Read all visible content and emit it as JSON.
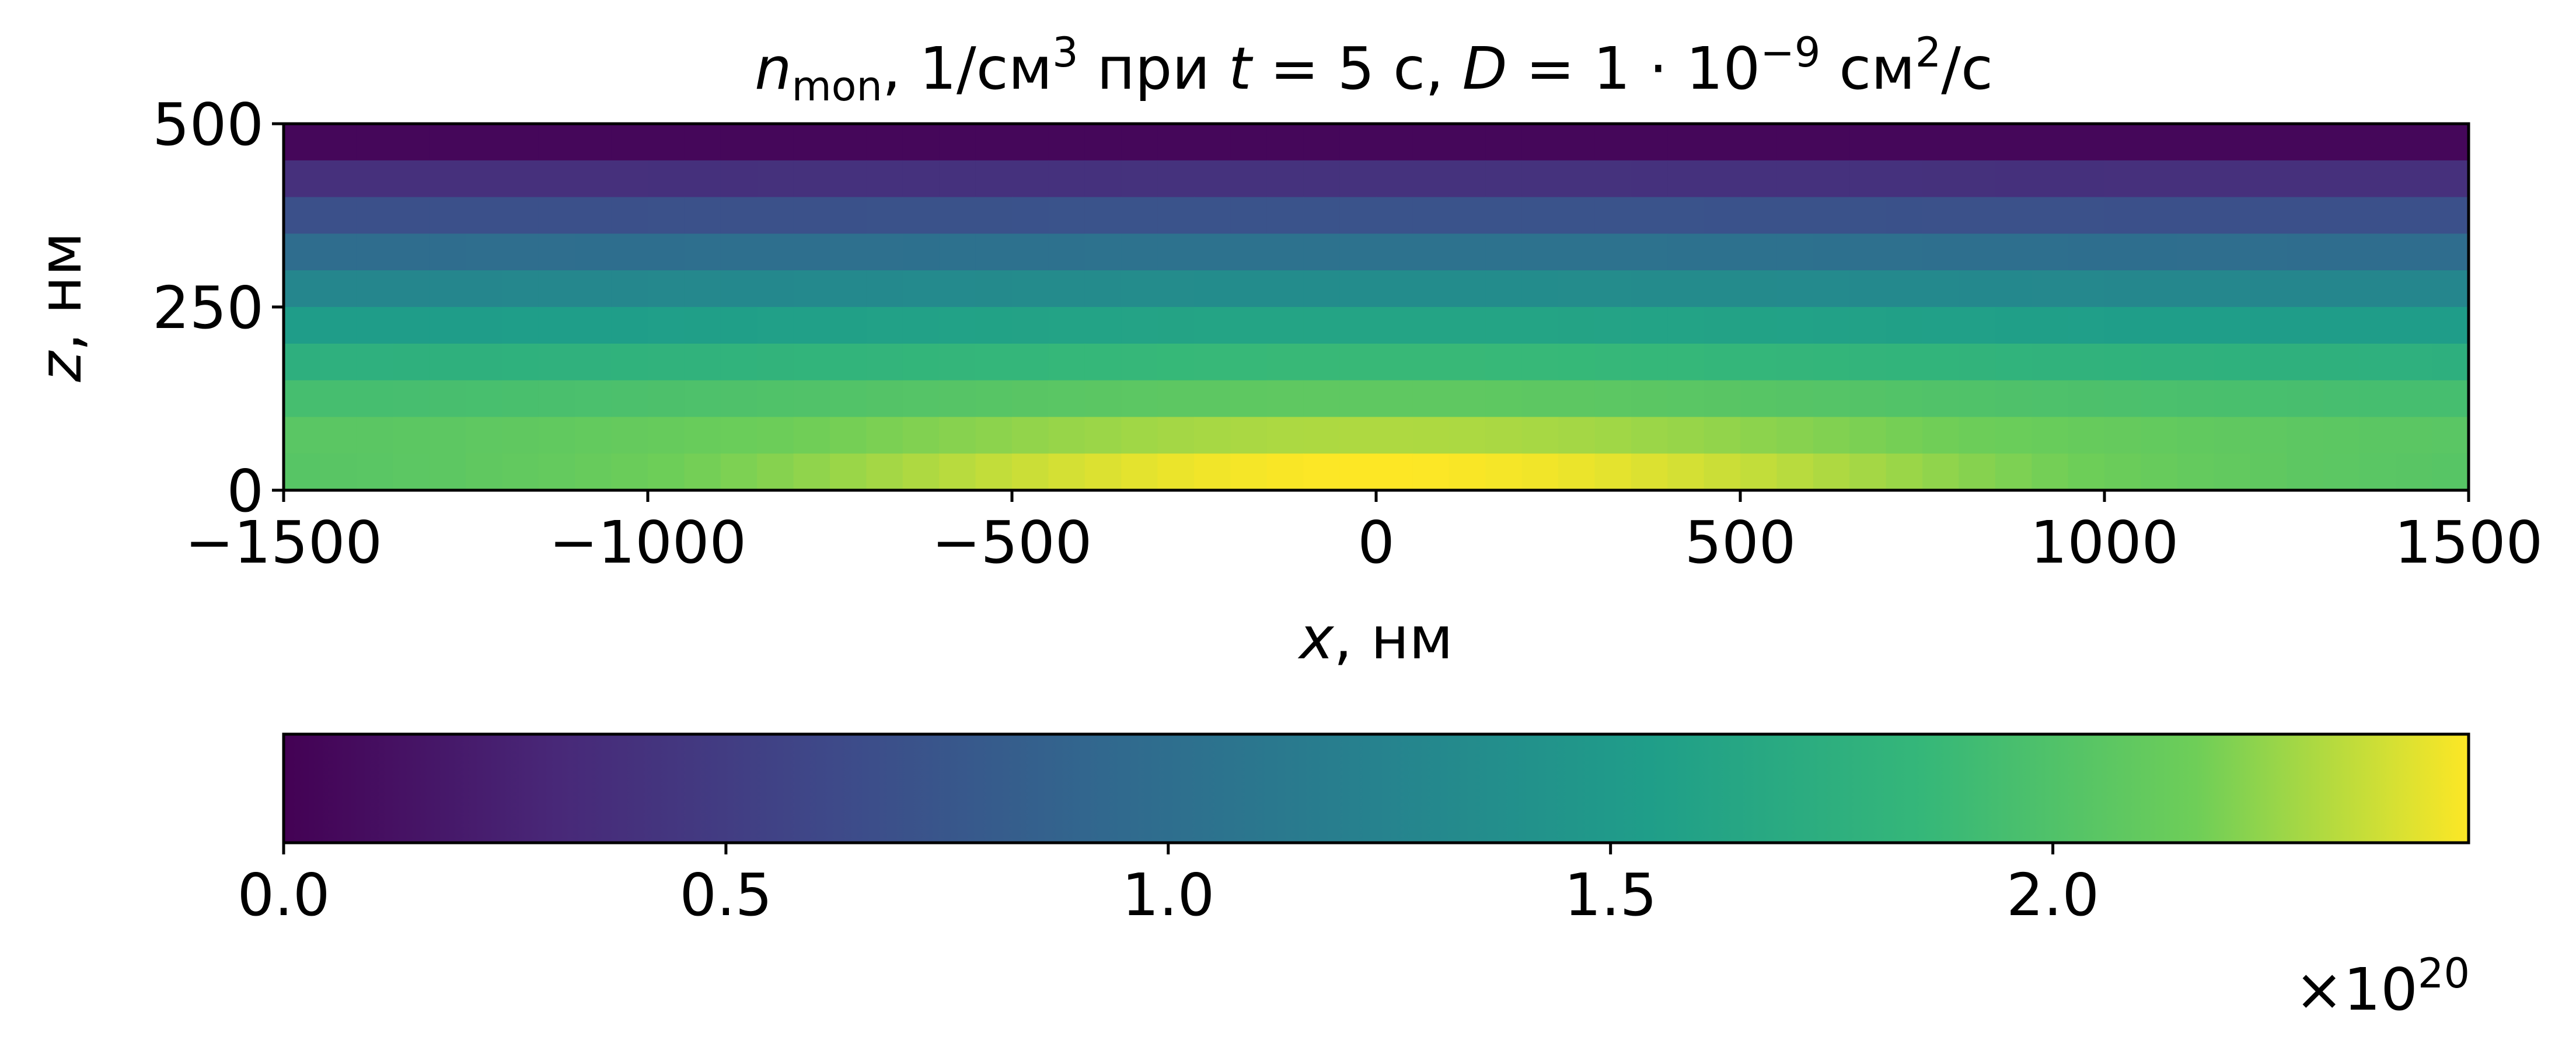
{
  "chart_data": {
    "type": "heatmap",
    "title": {
      "var": "n",
      "var_sub": "mon",
      "part1": ", 1/см",
      "sup1": "3",
      "part2": " при ",
      "t_var": "t",
      "part3": " = 5 с, ",
      "d_var": "D",
      "part4": " = 1 · 10",
      "sup2": "−9",
      "part5": " см",
      "sup3": "2",
      "part6": "/с"
    },
    "xlabel": {
      "var": "x",
      "unit": ", нм"
    },
    "ylabel": {
      "var": "z",
      "unit": ", нм"
    },
    "xlim": [
      -1500,
      1500
    ],
    "ylim": [
      0,
      500
    ],
    "x_ticks": [
      -1500,
      -1000,
      -500,
      0,
      500,
      1000,
      1500
    ],
    "x_tick_labels": [
      "−1500",
      "−1000",
      "−500",
      "0",
      "500",
      "1000",
      "1500"
    ],
    "y_ticks": [
      0,
      250,
      500
    ],
    "y_tick_labels": [
      "0",
      "250",
      "500"
    ],
    "cell_size_nm": 50,
    "colormap": "viridis",
    "colorbar": {
      "min": 0.0,
      "max": 2.47,
      "ticks": [
        0.0,
        0.5,
        1.0,
        1.5,
        2.0
      ],
      "tick_labels": [
        "0.0",
        "0.5",
        "1.0",
        "1.5",
        "2.0"
      ],
      "multiplier": {
        "base": "×10",
        "exp": "20"
      }
    },
    "z_bin_values_1e20": [
      {
        "z_range": [
          450,
          500
        ],
        "value_center": 0.05,
        "value_edge": 0.05
      },
      {
        "z_range": [
          400,
          450
        ],
        "value_center": 0.4,
        "value_edge": 0.38
      },
      {
        "z_range": [
          350,
          400
        ],
        "value_center": 0.72,
        "value_edge": 0.68
      },
      {
        "z_range": [
          300,
          350
        ],
        "value_center": 1.05,
        "value_edge": 0.98
      },
      {
        "z_range": [
          250,
          300
        ],
        "value_center": 1.35,
        "value_edge": 1.27
      },
      {
        "z_range": [
          200,
          250
        ],
        "value_center": 1.62,
        "value_edge": 1.52
      },
      {
        "z_range": [
          150,
          200
        ],
        "value_center": 1.87,
        "value_edge": 1.75
      },
      {
        "z_range": [
          100,
          150
        ],
        "value_center": 2.08,
        "value_edge": 1.93
      },
      {
        "z_range": [
          50,
          100
        ],
        "value_center": 2.3,
        "value_edge": 2.03
      },
      {
        "z_range": [
          0,
          50
        ],
        "value_center": 2.47,
        "value_edge": 2.0
      }
    ],
    "x_profile": "symmetric maximum at x = 0, decreasing toward x = ±1500 nm, strongest near z = 0"
  }
}
